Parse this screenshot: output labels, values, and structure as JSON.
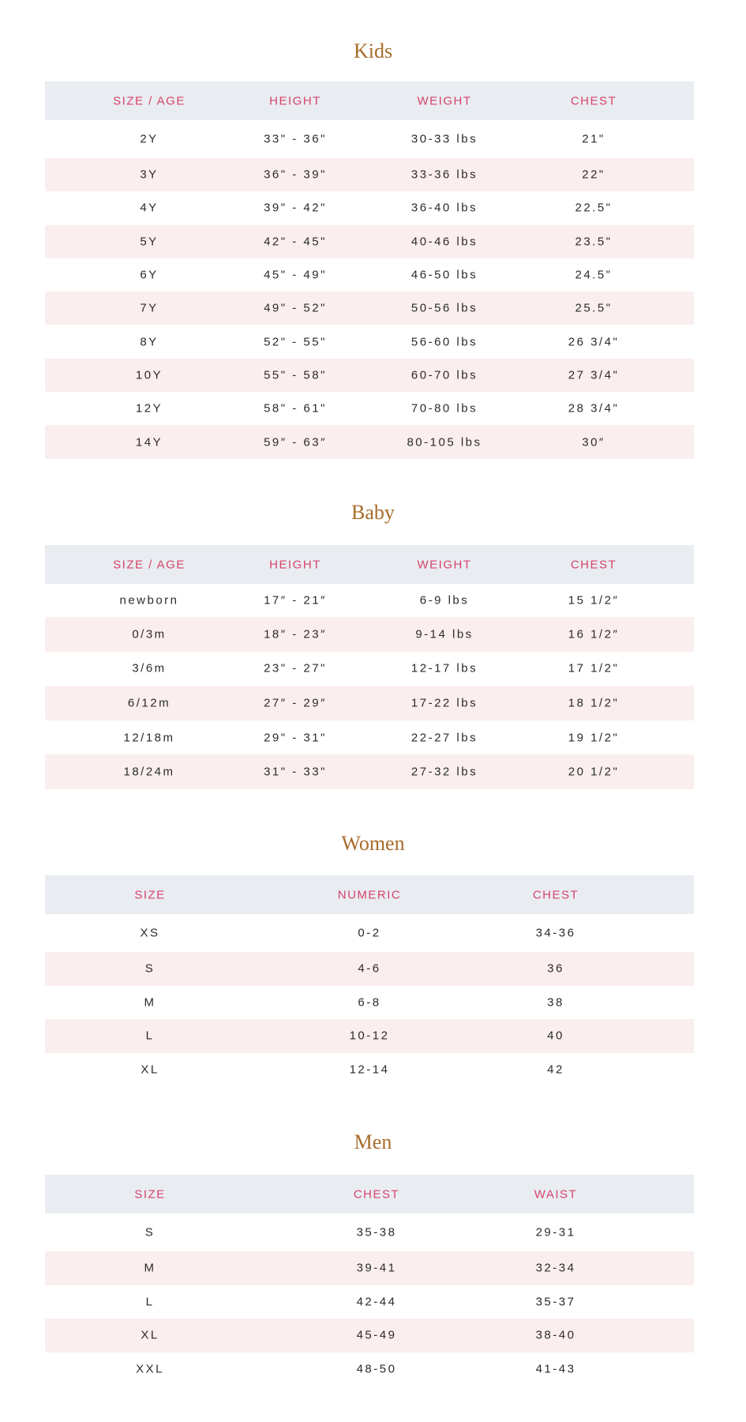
{
  "colors": {
    "title": "#a86b2a",
    "header_text": "#d6436b",
    "header_bg": "#e9ecf0",
    "stripe": "#fbeeee"
  },
  "sections": [
    {
      "title": "Kids",
      "headers": [
        "SIZE / AGE",
        "HEIGHT",
        "WEIGHT",
        "CHEST"
      ],
      "rows": [
        [
          "2Y",
          "33\" - 36\"",
          "30-33 lbs",
          "21\""
        ],
        [
          "3Y",
          "36\" - 39\"",
          "33-36 lbs",
          "22\""
        ],
        [
          "4Y",
          "39\" - 42\"",
          "36-40 lbs",
          "22.5\""
        ],
        [
          "5Y",
          "42\" - 45\"",
          "40-46 lbs",
          "23.5\""
        ],
        [
          "6Y",
          "45\" - 49\"",
          "46-50 lbs",
          "24.5\""
        ],
        [
          "7Y",
          "49\" - 52\"",
          "50-56 lbs",
          "25.5\""
        ],
        [
          "8Y",
          "52\" - 55\"",
          "56-60 lbs",
          "26 3/4\""
        ],
        [
          "10Y",
          "55\" - 58\"",
          "60-70 lbs",
          "27 3/4\""
        ],
        [
          "12Y",
          "58\" - 61\"",
          "70-80 lbs",
          "28 3/4\""
        ],
        [
          "14Y",
          "59″ - 63″",
          "80-105 lbs",
          "30″"
        ]
      ]
    },
    {
      "title": "Baby",
      "headers": [
        "SIZE / AGE",
        "HEIGHT",
        "WEIGHT",
        "CHEST"
      ],
      "rows": [
        [
          "newborn",
          "17″ - 21″",
          "6-9 lbs",
          "15 1/2″"
        ],
        [
          "0/3m",
          "18″ - 23″",
          "9-14 lbs",
          "16 1/2″"
        ],
        [
          "3/6m",
          "23\" - 27\"",
          "12-17 lbs",
          "17 1/2\""
        ],
        [
          "6/12m",
          "27″ - 29″",
          "17-22 lbs",
          "18 1/2\""
        ],
        [
          "12/18m",
          "29\" - 31\"",
          "22-27 lbs",
          "19 1/2\""
        ],
        [
          "18/24m",
          "31\" - 33\"",
          "27-32 lbs",
          "20 1/2\""
        ]
      ]
    },
    {
      "title": "Women",
      "headers": [
        "SIZE",
        "NUMERIC",
        "CHEST"
      ],
      "rows": [
        [
          "XS",
          "0-2",
          "34-36"
        ],
        [
          "S",
          "4-6",
          "36"
        ],
        [
          "M",
          "6-8",
          "38"
        ],
        [
          "L",
          "10-12",
          "40"
        ],
        [
          "XL",
          "12-14",
          "42"
        ]
      ]
    },
    {
      "title": "Men",
      "headers": [
        "SIZE",
        "CHEST",
        "WAIST"
      ],
      "rows": [
        [
          "S",
          "35-38",
          "29-31"
        ],
        [
          "M",
          "39-41",
          "32-34"
        ],
        [
          "L",
          "42-44",
          "35-37"
        ],
        [
          "XL",
          "45-49",
          "38-40"
        ],
        [
          "XXL",
          "48-50",
          "41-43"
        ]
      ]
    }
  ]
}
